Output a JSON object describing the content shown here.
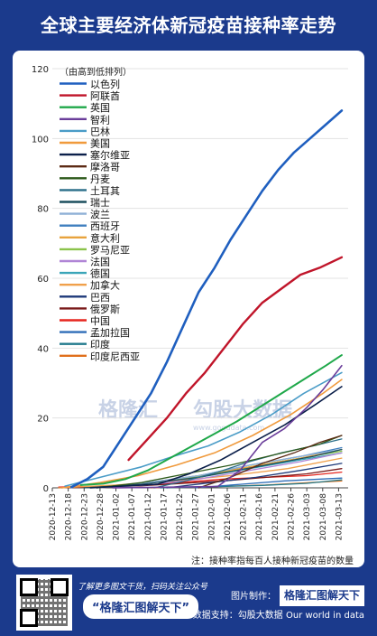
{
  "page": {
    "title": "全球主要经济体新冠疫苗接种率走势",
    "note": "注：接种率指每百人接种新冠疫苗的数量",
    "footer": {
      "promo_text": "了解更多图文干货，扫码关注公众号",
      "promo_badge": "“格隆汇图解天下”",
      "made_by_label": "图片制作：",
      "made_by_brand": "格隆汇图解天下",
      "source": "数据支持：勾股大数据 Our world in data",
      "logo_text": "格隆汇"
    },
    "watermark_left": "格隆汇",
    "watermark_right": "勾股大数据",
    "watermark_url": "www.gogudata.com"
  },
  "chart_data": {
    "type": "line",
    "ylim": [
      0,
      120
    ],
    "yticks": [
      0,
      20,
      40,
      60,
      80,
      100,
      120
    ],
    "xlim": [
      "2020-12-13",
      "2021-03-16"
    ],
    "xticks": [
      "2020-12-13",
      "2020-12-18",
      "2020-12-23",
      "2020-12-28",
      "2021-01-02",
      "2021-01-07",
      "2021-01-12",
      "2021-01-17",
      "2021-01-22",
      "2021-01-27",
      "2021-02-01",
      "2021-02-06",
      "2021-02-11",
      "2021-02-16",
      "2021-02-21",
      "2021-02-26",
      "2021-03-03",
      "2021-03-08",
      "2021-03-13"
    ],
    "legend_title": "（由高到低排列）",
    "legend_position": "top-left",
    "series": [
      {
        "name": "以色列",
        "color": "#1f5fbf",
        "width": 2.6,
        "x": [
          "2020-12-19",
          "2020-12-24",
          "2020-12-29",
          "2021-01-03",
          "2021-01-08",
          "2021-01-13",
          "2021-01-18",
          "2021-01-23",
          "2021-01-28",
          "2021-02-02",
          "2021-02-07",
          "2021-02-12",
          "2021-02-17",
          "2021-02-22",
          "2021-02-27",
          "2021-03-04",
          "2021-03-09",
          "2021-03-14"
        ],
        "y": [
          0.2,
          2.5,
          6,
          13,
          20,
          27,
          36,
          46,
          56,
          63,
          71,
          78,
          85,
          91,
          96,
          100,
          104,
          108
        ]
      },
      {
        "name": "阿联酋",
        "color": "#c0152a",
        "width": 2.4,
        "x": [
          "2021-01-06",
          "2021-01-12",
          "2021-01-18",
          "2021-01-24",
          "2021-01-30",
          "2021-02-05",
          "2021-02-11",
          "2021-02-17",
          "2021-02-23",
          "2021-03-01",
          "2021-03-07",
          "2021-03-14"
        ],
        "y": [
          8,
          14,
          20,
          27,
          33,
          40,
          47,
          53,
          57,
          61,
          63,
          66
        ]
      },
      {
        "name": "英国",
        "color": "#1fa84a",
        "width": 2,
        "x": [
          "2020-12-22",
          "2020-12-29",
          "2021-01-05",
          "2021-01-12",
          "2021-01-19",
          "2021-01-26",
          "2021-02-02",
          "2021-02-09",
          "2021-02-16",
          "2021-02-23",
          "2021-03-02",
          "2021-03-09",
          "2021-03-14"
        ],
        "y": [
          0.8,
          1.2,
          2.5,
          5,
          8.5,
          12,
          15.5,
          19,
          23,
          27,
          31,
          35,
          38
        ]
      },
      {
        "name": "智利",
        "color": "#6a3d9a",
        "width": 1.6,
        "x": [
          "2021-01-01",
          "2021-01-20",
          "2021-02-03",
          "2021-02-10",
          "2021-02-17",
          "2021-02-24",
          "2021-03-03",
          "2021-03-08",
          "2021-03-14"
        ],
        "y": [
          0,
          0.2,
          0.4,
          5,
          13,
          17,
          23,
          28,
          35
        ]
      },
      {
        "name": "巴林",
        "color": "#4a9cc7",
        "width": 1.6,
        "x": [
          "2020-12-17",
          "2020-12-28",
          "2021-01-10",
          "2021-01-20",
          "2021-01-31",
          "2021-02-10",
          "2021-02-20",
          "2021-03-02",
          "2021-03-14"
        ],
        "y": [
          0.5,
          3,
          6,
          9,
          12,
          16,
          21,
          27,
          33
        ]
      },
      {
        "name": "美国",
        "color": "#f09a3c",
        "width": 1.6,
        "x": [
          "2020-12-16",
          "2020-12-28",
          "2021-01-09",
          "2021-01-21",
          "2021-02-02",
          "2021-02-14",
          "2021-02-26",
          "2021-03-08",
          "2021-03-14"
        ],
        "y": [
          0,
          1.5,
          3.5,
          6.5,
          10,
          15,
          21,
          27,
          31
        ]
      },
      {
        "name": "塞尔维亚",
        "color": "#0b1f4a",
        "width": 1.6,
        "x": [
          "2020-12-25",
          "2021-01-15",
          "2021-01-25",
          "2021-02-04",
          "2021-02-14",
          "2021-02-24",
          "2021-03-06",
          "2021-03-14"
        ],
        "y": [
          0,
          1,
          4,
          8,
          13,
          18,
          24,
          29
        ]
      },
      {
        "name": "摩洛哥",
        "color": "#5c2a14",
        "width": 1.3,
        "x": [
          "2021-01-28",
          "2021-02-07",
          "2021-02-17",
          "2021-02-27",
          "2021-03-07",
          "2021-03-14"
        ],
        "y": [
          0,
          3,
          7,
          10,
          13,
          15
        ]
      },
      {
        "name": "丹麦",
        "color": "#2d5a1b",
        "width": 1.3,
        "x": [
          "2020-12-27",
          "2021-01-10",
          "2021-01-24",
          "2021-02-07",
          "2021-02-21",
          "2021-03-07",
          "2021-03-14"
        ],
        "y": [
          0,
          1.5,
          4,
          6.5,
          9.5,
          12.5,
          15
        ]
      },
      {
        "name": "土耳其",
        "color": "#2b6f8a",
        "width": 1.3,
        "x": [
          "2021-01-14",
          "2021-01-24",
          "2021-02-03",
          "2021-02-13",
          "2021-02-23",
          "2021-03-05",
          "2021-03-14"
        ],
        "y": [
          0,
          2,
          4.5,
          7.5,
          10,
          12,
          14
        ]
      },
      {
        "name": "瑞士",
        "color": "#1c4f5e",
        "width": 1.3,
        "x": [
          "2020-12-23",
          "2021-01-10",
          "2021-01-28",
          "2021-02-15",
          "2021-03-05",
          "2021-03-14"
        ],
        "y": [
          0,
          1,
          3,
          6,
          9,
          11
        ]
      },
      {
        "name": "波兰",
        "color": "#8fb0d6",
        "width": 1.3,
        "x": [
          "2020-12-27",
          "2021-01-12",
          "2021-01-28",
          "2021-02-13",
          "2021-03-01",
          "2021-03-14"
        ],
        "y": [
          0,
          1.5,
          3.5,
          6.5,
          9,
          11
        ]
      },
      {
        "name": "西班牙",
        "color": "#3f7fbf",
        "width": 1.3,
        "x": [
          "2020-12-27",
          "2021-01-12",
          "2021-01-28",
          "2021-02-13",
          "2021-03-01",
          "2021-03-14"
        ],
        "y": [
          0,
          1.5,
          3.5,
          6.5,
          9,
          11.5
        ]
      },
      {
        "name": "意大利",
        "color": "#e8a33d",
        "width": 1.3,
        "x": [
          "2020-12-27",
          "2021-01-12",
          "2021-01-28",
          "2021-02-13",
          "2021-03-01",
          "2021-03-14"
        ],
        "y": [
          0,
          1.5,
          3.5,
          6,
          8.5,
          11
        ]
      },
      {
        "name": "罗马尼亚",
        "color": "#8bc34a",
        "width": 1.3,
        "x": [
          "2020-12-27",
          "2021-01-12",
          "2021-01-28",
          "2021-02-13",
          "2021-03-01",
          "2021-03-14"
        ],
        "y": [
          0,
          1.5,
          3.2,
          6,
          8.5,
          10.5
        ]
      },
      {
        "name": "法国",
        "color": "#b085d6",
        "width": 1.3,
        "x": [
          "2020-12-27",
          "2021-01-12",
          "2021-01-28",
          "2021-02-13",
          "2021-03-01",
          "2021-03-14"
        ],
        "y": [
          0,
          0.8,
          2.5,
          5,
          7.5,
          10
        ]
      },
      {
        "name": "德国",
        "color": "#3aa5b8",
        "width": 1.3,
        "x": [
          "2020-12-27",
          "2021-01-12",
          "2021-01-28",
          "2021-02-13",
          "2021-03-01",
          "2021-03-14"
        ],
        "y": [
          0,
          1.3,
          3,
          5.5,
          8,
          10
        ]
      },
      {
        "name": "加拿大",
        "color": "#f0a04b",
        "width": 1.3,
        "x": [
          "2020-12-15",
          "2021-01-02",
          "2021-01-20",
          "2021-02-07",
          "2021-02-25",
          "2021-03-14"
        ],
        "y": [
          0,
          0.8,
          2,
          3.5,
          5.5,
          8.5
        ]
      },
      {
        "name": "巴西",
        "color": "#1e3a7a",
        "width": 1.3,
        "x": [
          "2021-01-18",
          "2021-02-01",
          "2021-02-15",
          "2021-03-01",
          "2021-03-14"
        ],
        "y": [
          0,
          1.5,
          3,
          5,
          7
        ]
      },
      {
        "name": "俄罗斯",
        "color": "#7a1a1a",
        "width": 1.3,
        "x": [
          "2020-12-15",
          "2021-01-10",
          "2021-02-05",
          "2021-03-03",
          "2021-03-14"
        ],
        "y": [
          0,
          0.6,
          2,
          4,
          5.5
        ]
      },
      {
        "name": "中国",
        "color": "#e6261f",
        "width": 1.3,
        "x": [
          "2020-12-15",
          "2021-01-10",
          "2021-02-05",
          "2021-03-03",
          "2021-03-14"
        ],
        "y": [
          0.2,
          0.7,
          2.5,
          3.5,
          4.5
        ]
      },
      {
        "name": "孟加拉国",
        "color": "#2f6db8",
        "width": 1.3,
        "x": [
          "2021-01-27",
          "2021-02-10",
          "2021-02-24",
          "2021-03-14"
        ],
        "y": [
          0,
          1,
          2,
          2.8
        ]
      },
      {
        "name": "印度",
        "color": "#217a8c",
        "width": 1.3,
        "x": [
          "2021-01-16",
          "2021-02-01",
          "2021-02-17",
          "2021-03-03",
          "2021-03-14"
        ],
        "y": [
          0,
          0.3,
          0.7,
          1.3,
          2.3
        ]
      },
      {
        "name": "印度尼西亚",
        "color": "#e0701d",
        "width": 1.3,
        "x": [
          "2021-01-13",
          "2021-01-31",
          "2021-02-18",
          "2021-03-14"
        ],
        "y": [
          0,
          0.3,
          0.8,
          2
        ]
      }
    ]
  }
}
